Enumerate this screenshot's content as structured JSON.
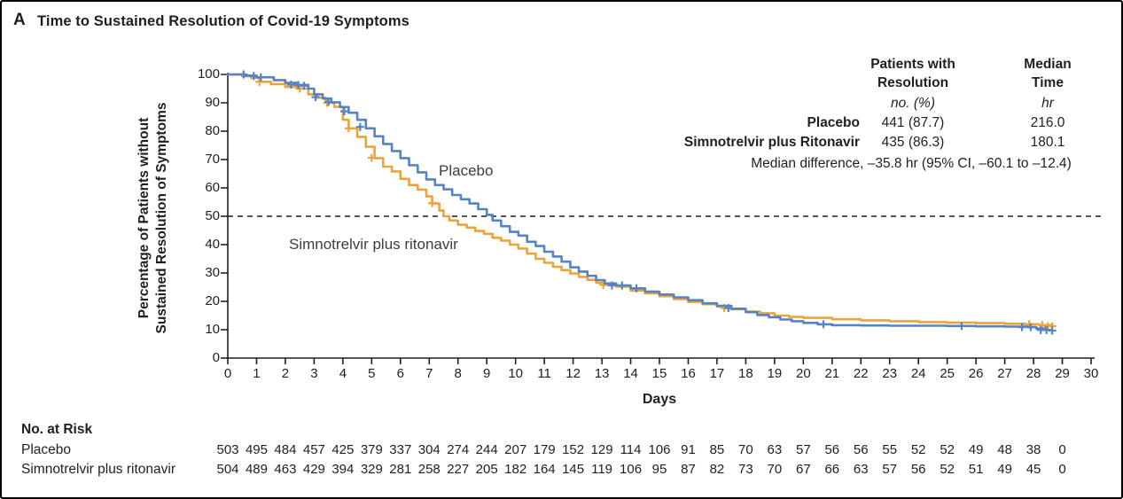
{
  "panel": {
    "label": "A",
    "title": "Time to Sustained Resolution of Covid-19 Symptoms"
  },
  "colors": {
    "placebo": "#5683C4",
    "simnotrelvir": "#EAA43A",
    "axis": "#1f1f1f",
    "reference_line": "#1f1f1f"
  },
  "chart_data": {
    "type": "line",
    "subtype": "kaplan-meier-step",
    "title": "Time to Sustained Resolution of Covid-19 Symptoms",
    "xlabel": "Days",
    "ylabel": "Percentage of Patients without\nSustained Resolution of Symptoms",
    "xlim": [
      0,
      30
    ],
    "ylim": [
      0,
      100
    ],
    "x_ticks": [
      0,
      1,
      2,
      3,
      4,
      5,
      6,
      7,
      8,
      9,
      10,
      11,
      12,
      13,
      14,
      15,
      16,
      17,
      18,
      19,
      20,
      21,
      22,
      23,
      24,
      25,
      26,
      27,
      28,
      29,
      30
    ],
    "y_ticks": [
      0,
      10,
      20,
      30,
      40,
      50,
      60,
      70,
      80,
      90,
      100
    ],
    "grid": false,
    "reference_line_y": 50,
    "series": [
      {
        "name": "Simnotrelvir plus ritonavir",
        "color": "#EAA43A",
        "points": [
          [
            0,
            100
          ],
          [
            0.5,
            99.4
          ],
          [
            0.8,
            98.8
          ],
          [
            1.1,
            97.4
          ],
          [
            1.5,
            96.6
          ],
          [
            2.0,
            95.6
          ],
          [
            2.4,
            95
          ],
          [
            2.8,
            93
          ],
          [
            3.1,
            91.8
          ],
          [
            3.4,
            90
          ],
          [
            3.7,
            88.6
          ],
          [
            4.0,
            84
          ],
          [
            4.2,
            81
          ],
          [
            4.5,
            78
          ],
          [
            4.8,
            74.5
          ],
          [
            5.1,
            70.5
          ],
          [
            5.4,
            67.5
          ],
          [
            5.7,
            65.8
          ],
          [
            6.0,
            63.2
          ],
          [
            6.3,
            61
          ],
          [
            6.6,
            59.4
          ],
          [
            6.9,
            57
          ],
          [
            7.1,
            54.5
          ],
          [
            7.35,
            52
          ],
          [
            7.5,
            50
          ],
          [
            7.7,
            48.5
          ],
          [
            8.0,
            47
          ],
          [
            8.3,
            46
          ],
          [
            8.6,
            44.8
          ],
          [
            8.9,
            43.8
          ],
          [
            9.2,
            42.4
          ],
          [
            9.5,
            41.4
          ],
          [
            9.8,
            40
          ],
          [
            10.1,
            38.6
          ],
          [
            10.4,
            36.8
          ],
          [
            10.7,
            35
          ],
          [
            11.0,
            33.6
          ],
          [
            11.3,
            32.2
          ],
          [
            11.6,
            31
          ],
          [
            11.9,
            29.8
          ],
          [
            12.2,
            28.6
          ],
          [
            12.5,
            27.6
          ],
          [
            12.8,
            26.6
          ],
          [
            13.1,
            25.8
          ],
          [
            13.5,
            25.2
          ],
          [
            14.0,
            23.8
          ],
          [
            14.5,
            22.8
          ],
          [
            15.0,
            21.8
          ],
          [
            15.5,
            20.8
          ],
          [
            16.0,
            19.8
          ],
          [
            16.5,
            19
          ],
          [
            17.0,
            18.2
          ],
          [
            17.5,
            17.2
          ],
          [
            18.0,
            16.4
          ],
          [
            18.5,
            15.8
          ],
          [
            19.0,
            15
          ],
          [
            19.5,
            14.5
          ],
          [
            20.0,
            14.2
          ],
          [
            21.0,
            13.7
          ],
          [
            22.0,
            13.3
          ],
          [
            23.0,
            13.0
          ],
          [
            24.0,
            12.7
          ],
          [
            25.0,
            12.5
          ],
          [
            26.0,
            12.3
          ],
          [
            27.0,
            12.1
          ],
          [
            27.7,
            11.9
          ],
          [
            28.2,
            11.6
          ],
          [
            28.65,
            11.2
          ]
        ],
        "censors": [
          [
            1.1,
            97.4
          ],
          [
            2.5,
            95
          ],
          [
            3.45,
            90
          ],
          [
            4.2,
            81
          ],
          [
            5.0,
            70.6
          ],
          [
            7.1,
            54.6
          ],
          [
            13.05,
            25.8
          ],
          [
            17.25,
            17.7
          ],
          [
            27.85,
            11.9
          ],
          [
            28.3,
            11.6
          ],
          [
            28.5,
            11.2
          ],
          [
            28.65,
            11.2
          ]
        ]
      },
      {
        "name": "Placebo",
        "color": "#5683C4",
        "points": [
          [
            0,
            100
          ],
          [
            0.6,
            99.6
          ],
          [
            1.0,
            99
          ],
          [
            1.6,
            98
          ],
          [
            2.0,
            97
          ],
          [
            2.4,
            96.3
          ],
          [
            2.8,
            95
          ],
          [
            3.0,
            93
          ],
          [
            3.3,
            91.5
          ],
          [
            3.6,
            90.2
          ],
          [
            3.9,
            88.5
          ],
          [
            4.2,
            86.5
          ],
          [
            4.5,
            84
          ],
          [
            4.8,
            81
          ],
          [
            5.1,
            78.2
          ],
          [
            5.4,
            75.5
          ],
          [
            5.7,
            73
          ],
          [
            6.0,
            70.5
          ],
          [
            6.3,
            68
          ],
          [
            6.6,
            65.5
          ],
          [
            6.9,
            63
          ],
          [
            7.2,
            61
          ],
          [
            7.5,
            59.5
          ],
          [
            7.8,
            57.5
          ],
          [
            8.1,
            56
          ],
          [
            8.4,
            54.5
          ],
          [
            8.7,
            52.5
          ],
          [
            9.0,
            50.5
          ],
          [
            9.2,
            48.5
          ],
          [
            9.5,
            46.5
          ],
          [
            9.8,
            44.5
          ],
          [
            10.1,
            43.2
          ],
          [
            10.4,
            41
          ],
          [
            10.7,
            39.5
          ],
          [
            11.0,
            37.5
          ],
          [
            11.3,
            35.8
          ],
          [
            11.6,
            34
          ],
          [
            11.9,
            32
          ],
          [
            12.2,
            30.5
          ],
          [
            12.5,
            29
          ],
          [
            12.8,
            27.5
          ],
          [
            13.1,
            26.3
          ],
          [
            13.5,
            25.6
          ],
          [
            14.0,
            24.6
          ],
          [
            14.5,
            23.4
          ],
          [
            15.0,
            22.4
          ],
          [
            15.5,
            21.4
          ],
          [
            16.0,
            20.4
          ],
          [
            16.5,
            19.3
          ],
          [
            17.0,
            18.4
          ],
          [
            17.5,
            17.4
          ],
          [
            18.0,
            16.2
          ],
          [
            18.4,
            15.2
          ],
          [
            18.8,
            14.4
          ],
          [
            19.2,
            13.6
          ],
          [
            19.6,
            13.0
          ],
          [
            20.0,
            12.4
          ],
          [
            20.5,
            11.9
          ],
          [
            21.0,
            11.6
          ],
          [
            22.0,
            11.5
          ],
          [
            23.0,
            11.4
          ],
          [
            24.0,
            11.4
          ],
          [
            25.0,
            11.3
          ],
          [
            26.0,
            11.2
          ],
          [
            27.0,
            11.1
          ],
          [
            27.8,
            10.9
          ],
          [
            28.1,
            10.4
          ],
          [
            28.4,
            9.9
          ],
          [
            28.65,
            9.7
          ]
        ],
        "censors": [
          [
            0.55,
            100
          ],
          [
            0.9,
            99.4
          ],
          [
            1.15,
            99
          ],
          [
            2.2,
            96.4
          ],
          [
            2.45,
            96.3
          ],
          [
            2.65,
            96
          ],
          [
            3.05,
            92
          ],
          [
            3.5,
            90.3
          ],
          [
            4.05,
            87
          ],
          [
            4.6,
            81.5
          ],
          [
            13.35,
            25.6
          ],
          [
            13.7,
            25.6
          ],
          [
            14.2,
            24.6
          ],
          [
            17.4,
            17.6
          ],
          [
            20.7,
            11.9
          ],
          [
            25.5,
            11.3
          ],
          [
            27.6,
            10.9
          ],
          [
            27.9,
            10.9
          ],
          [
            28.25,
            9.9
          ],
          [
            28.45,
            9.9
          ],
          [
            28.65,
            9.7
          ]
        ]
      }
    ]
  },
  "curve_labels": {
    "placebo": "Placebo",
    "simnotrelvir": "Simnotrelvir plus ritonavir"
  },
  "stats_table": {
    "col_headers": [
      "Patients with\nResolution",
      "Median\nTime"
    ],
    "col_subheaders": [
      "no. (%)",
      "hr"
    ],
    "rows": [
      {
        "label": "Placebo",
        "resolution": "441 (87.7)",
        "median": "216.0"
      },
      {
        "label": "Simnotrelvir plus Ritonavir",
        "resolution": "435 (86.3)",
        "median": "180.1"
      }
    ],
    "footnote": "Median difference, –35.8 hr (95% CI, –60.1 to –12.4)"
  },
  "risk_table": {
    "title": "No. at Risk",
    "days": [
      0,
      1,
      2,
      3,
      4,
      5,
      6,
      7,
      8,
      9,
      10,
      11,
      12,
      13,
      14,
      15,
      16,
      17,
      18,
      19,
      20,
      21,
      22,
      23,
      24,
      25,
      26,
      27,
      28,
      29
    ],
    "rows": [
      {
        "label": "Placebo",
        "values": [
          503,
          495,
          484,
          457,
          425,
          379,
          337,
          304,
          274,
          244,
          207,
          179,
          152,
          129,
          114,
          106,
          91,
          85,
          70,
          63,
          57,
          56,
          56,
          55,
          52,
          52,
          49,
          48,
          38,
          0
        ]
      },
      {
        "label": "Simnotrelvir plus ritonavir",
        "values": [
          504,
          489,
          463,
          429,
          394,
          329,
          281,
          258,
          227,
          205,
          182,
          164,
          145,
          119,
          106,
          95,
          87,
          82,
          73,
          70,
          67,
          66,
          63,
          57,
          56,
          52,
          51,
          49,
          45,
          0
        ]
      }
    ]
  }
}
